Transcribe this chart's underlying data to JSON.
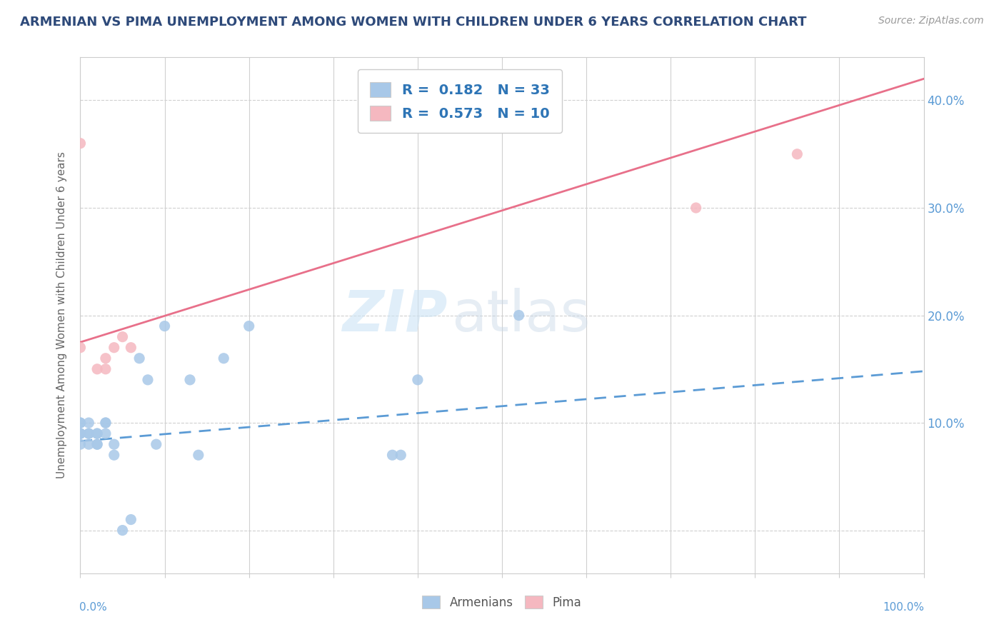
{
  "title": "ARMENIAN VS PIMA UNEMPLOYMENT AMONG WOMEN WITH CHILDREN UNDER 6 YEARS CORRELATION CHART",
  "source": "Source: ZipAtlas.com",
  "ylabel": "Unemployment Among Women with Children Under 6 years",
  "watermark": "ZIPatlas",
  "armenians_R": 0.182,
  "armenians_N": 33,
  "pima_R": 0.573,
  "pima_N": 10,
  "xlim": [
    0.0,
    1.0
  ],
  "ylim": [
    -0.04,
    0.44
  ],
  "yticks": [
    0.0,
    0.1,
    0.2,
    0.3,
    0.4
  ],
  "ytick_labels": [
    "",
    "10.0%",
    "20.0%",
    "30.0%",
    "40.0%"
  ],
  "armenian_dot_color": "#a8c8e8",
  "pima_dot_color": "#f5b8c0",
  "armenian_line_color": "#5b9bd5",
  "pima_line_color": "#e8708a",
  "title_color": "#2e4a7a",
  "source_color": "#999999",
  "legend_R_color": "#2e75b6",
  "right_tick_color": "#5b9bd5",
  "armenians_x": [
    0.0,
    0.0,
    0.0,
    0.0,
    0.0,
    0.0,
    0.01,
    0.01,
    0.01,
    0.01,
    0.02,
    0.02,
    0.02,
    0.02,
    0.03,
    0.03,
    0.03,
    0.04,
    0.04,
    0.05,
    0.06,
    0.07,
    0.08,
    0.09,
    0.1,
    0.13,
    0.14,
    0.17,
    0.2,
    0.37,
    0.38,
    0.4,
    0.52
  ],
  "armenians_y": [
    0.09,
    0.09,
    0.1,
    0.1,
    0.08,
    0.09,
    0.08,
    0.09,
    0.09,
    0.1,
    0.08,
    0.08,
    0.09,
    0.09,
    0.09,
    0.1,
    0.1,
    0.07,
    0.08,
    0.0,
    0.01,
    0.16,
    0.14,
    0.08,
    0.19,
    0.14,
    0.07,
    0.16,
    0.19,
    0.07,
    0.07,
    0.14,
    0.2
  ],
  "pima_x": [
    0.0,
    0.0,
    0.02,
    0.03,
    0.03,
    0.04,
    0.05,
    0.06,
    0.73,
    0.85
  ],
  "pima_y": [
    0.36,
    0.17,
    0.15,
    0.15,
    0.16,
    0.17,
    0.18,
    0.17,
    0.3,
    0.35
  ],
  "pima_line_x0": 0.0,
  "pima_line_y0": 0.175,
  "pima_line_x1": 1.0,
  "pima_line_y1": 0.42,
  "arm_line_x0": 0.0,
  "arm_line_y0": 0.083,
  "arm_line_x1": 1.0,
  "arm_line_y1": 0.148
}
